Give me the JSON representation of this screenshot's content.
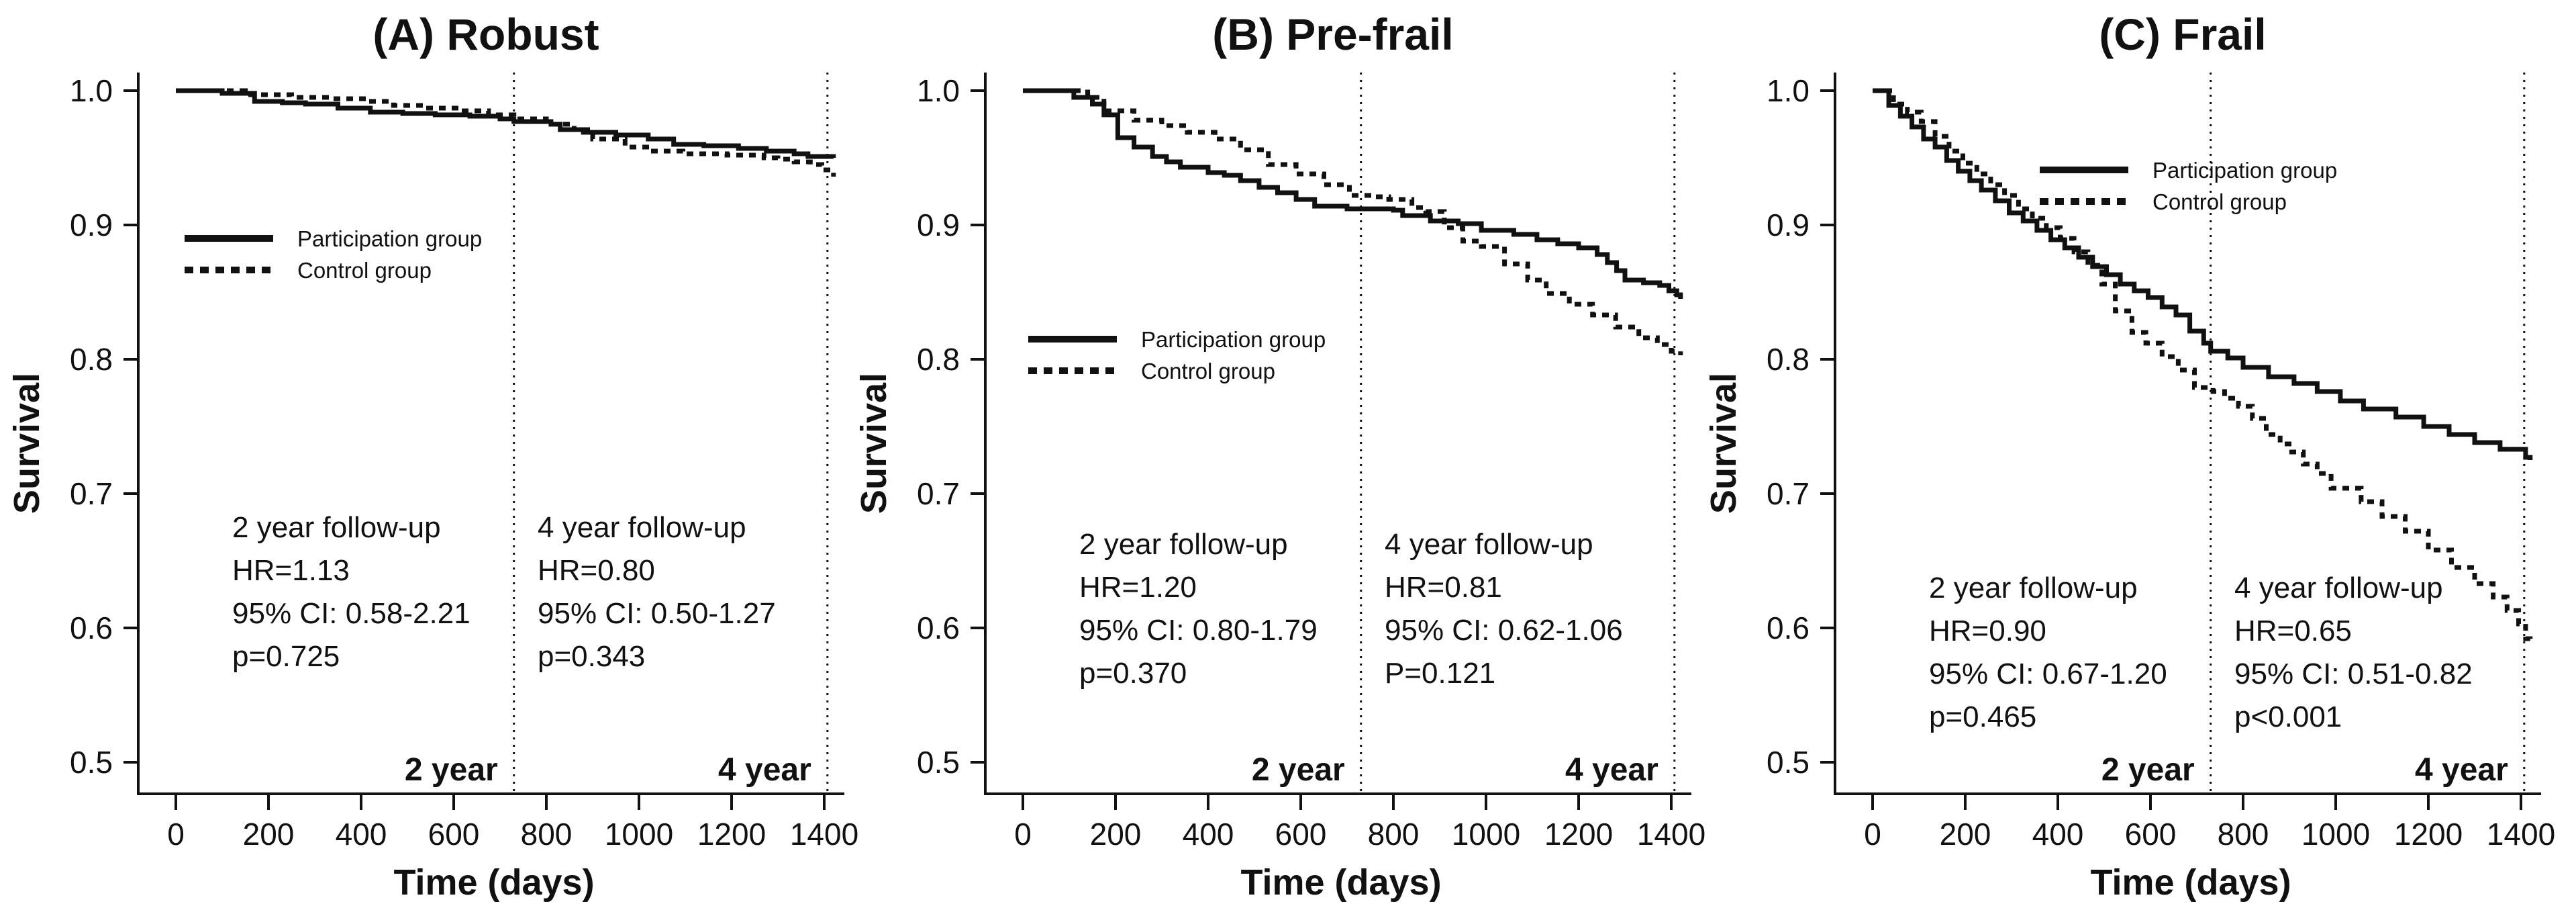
{
  "figure": {
    "ylabel": "Survival",
    "xlabel": "Time (days)",
    "legend": {
      "participation": "Participation group",
      "control": "Control group"
    },
    "colors": {
      "ink": "#111111",
      "background": "#ffffff"
    }
  },
  "chart_data": [
    {
      "type": "line",
      "title": "(A) Robust",
      "xlabel": "Time (days)",
      "ylabel": "Survival",
      "xlim": [
        0,
        1450
      ],
      "ylim": [
        0.47,
        1.02
      ],
      "xticks": [
        0,
        200,
        400,
        600,
        800,
        1000,
        1200,
        1400
      ],
      "yticks": [
        1.0,
        0.9,
        0.8,
        0.7,
        0.6,
        0.5
      ],
      "grid": false,
      "legend_position": {
        "x": 269,
        "y": 355
      },
      "annotation_baseline_y": 800,
      "vlines": [
        {
          "x": 730,
          "label": "2 year"
        },
        {
          "x": 1407,
          "label": "4 year"
        }
      ],
      "annotations": [
        {
          "x": 340,
          "lines": [
            "2 year follow-up",
            "HR=1.13",
            "95% CI: 0.58-2.21",
            "p=0.725"
          ]
        },
        {
          "x": 795,
          "lines": [
            "4 year follow-up",
            "HR=0.80",
            "95% CI: 0.50-1.27",
            "p=0.343"
          ]
        }
      ],
      "series": [
        {
          "name": "Participation group",
          "style": "solid",
          "points": [
            [
              0,
              1.0
            ],
            [
              70,
              1.0
            ],
            [
              100,
              0.998
            ],
            [
              170,
              0.992
            ],
            [
              230,
              0.991
            ],
            [
              280,
              0.99
            ],
            [
              350,
              0.987
            ],
            [
              420,
              0.984
            ],
            [
              490,
              0.983
            ],
            [
              560,
              0.982
            ],
            [
              635,
              0.981
            ],
            [
              700,
              0.979
            ],
            [
              730,
              0.977
            ],
            [
              810,
              0.975
            ],
            [
              830,
              0.971
            ],
            [
              880,
              0.969
            ],
            [
              950,
              0.967
            ],
            [
              1020,
              0.964
            ],
            [
              1075,
              0.96
            ],
            [
              1140,
              0.959
            ],
            [
              1215,
              0.957
            ],
            [
              1275,
              0.955
            ],
            [
              1335,
              0.953
            ],
            [
              1365,
              0.951
            ],
            [
              1420,
              0.95
            ]
          ]
        },
        {
          "name": "Control group",
          "style": "dotted",
          "points": [
            [
              0,
              1.0
            ],
            [
              150,
              0.997
            ],
            [
              250,
              0.995
            ],
            [
              335,
              0.994
            ],
            [
              405,
              0.992
            ],
            [
              470,
              0.989
            ],
            [
              540,
              0.987
            ],
            [
              605,
              0.985
            ],
            [
              675,
              0.982
            ],
            [
              730,
              0.979
            ],
            [
              800,
              0.975
            ],
            [
              860,
              0.971
            ],
            [
              900,
              0.964
            ],
            [
              970,
              0.958
            ],
            [
              1025,
              0.955
            ],
            [
              1095,
              0.953
            ],
            [
              1190,
              0.952
            ],
            [
              1270,
              0.95
            ],
            [
              1300,
              0.949
            ],
            [
              1335,
              0.947
            ],
            [
              1370,
              0.945
            ],
            [
              1395,
              0.941
            ],
            [
              1420,
              0.936
            ]
          ]
        }
      ]
    },
    {
      "type": "line",
      "title": "(B) Pre-frail",
      "xlabel": "Time (days)",
      "ylabel": "Survival",
      "xlim": [
        0,
        1450
      ],
      "ylim": [
        0.47,
        1.02
      ],
      "xticks": [
        0,
        200,
        400,
        600,
        800,
        1000,
        1200,
        1400
      ],
      "yticks": [
        1.0,
        0.9,
        0.8,
        0.7,
        0.6,
        0.5
      ],
      "grid": false,
      "legend_position": {
        "x": 264,
        "y": 505
      },
      "annotation_baseline_y": 825,
      "vlines": [
        {
          "x": 730,
          "label": "2 year"
        },
        {
          "x": 1407,
          "label": "4 year"
        }
      ],
      "annotations": [
        {
          "x": 340,
          "lines": [
            "2 year follow-up",
            "HR=1.20",
            "95% CI: 0.80-1.79",
            "p=0.370"
          ]
        },
        {
          "x": 795,
          "lines": [
            "4 year follow-up",
            "HR=0.81",
            "95% CI: 0.62-1.06",
            "P=0.121"
          ]
        }
      ],
      "series": [
        {
          "name": "Participation group",
          "style": "solid",
          "points": [
            [
              0,
              1.0
            ],
            [
              65,
              1.0
            ],
            [
              110,
              0.995
            ],
            [
              150,
              0.99
            ],
            [
              175,
              0.982
            ],
            [
              205,
              0.965
            ],
            [
              240,
              0.958
            ],
            [
              280,
              0.951
            ],
            [
              310,
              0.947
            ],
            [
              340,
              0.943
            ],
            [
              400,
              0.939
            ],
            [
              435,
              0.937
            ],
            [
              470,
              0.933
            ],
            [
              510,
              0.928
            ],
            [
              550,
              0.924
            ],
            [
              590,
              0.919
            ],
            [
              630,
              0.914
            ],
            [
              700,
              0.912
            ],
            [
              800,
              0.911
            ],
            [
              820,
              0.907
            ],
            [
              880,
              0.903
            ],
            [
              940,
              0.901
            ],
            [
              990,
              0.896
            ],
            [
              1060,
              0.893
            ],
            [
              1110,
              0.889
            ],
            [
              1155,
              0.886
            ],
            [
              1200,
              0.883
            ],
            [
              1240,
              0.878
            ],
            [
              1262,
              0.872
            ],
            [
              1282,
              0.866
            ],
            [
              1300,
              0.859
            ],
            [
              1340,
              0.857
            ],
            [
              1375,
              0.855
            ],
            [
              1395,
              0.851
            ],
            [
              1412,
              0.848
            ],
            [
              1420,
              0.845
            ]
          ]
        },
        {
          "name": "Control group",
          "style": "dotted",
          "points": [
            [
              0,
              1.0
            ],
            [
              125,
              0.999
            ],
            [
              140,
              0.995
            ],
            [
              175,
              0.985
            ],
            [
              240,
              0.978
            ],
            [
              300,
              0.974
            ],
            [
              355,
              0.969
            ],
            [
              415,
              0.964
            ],
            [
              470,
              0.956
            ],
            [
              530,
              0.945
            ],
            [
              590,
              0.938
            ],
            [
              650,
              0.93
            ],
            [
              705,
              0.922
            ],
            [
              760,
              0.921
            ],
            [
              790,
              0.919
            ],
            [
              840,
              0.913
            ],
            [
              870,
              0.91
            ],
            [
              910,
              0.898
            ],
            [
              950,
              0.888
            ],
            [
              990,
              0.884
            ],
            [
              1040,
              0.871
            ],
            [
              1090,
              0.859
            ],
            [
              1130,
              0.849
            ],
            [
              1180,
              0.841
            ],
            [
              1230,
              0.833
            ],
            [
              1280,
              0.824
            ],
            [
              1330,
              0.816
            ],
            [
              1370,
              0.811
            ],
            [
              1400,
              0.806
            ],
            [
              1420,
              0.803
            ]
          ]
        }
      ]
    },
    {
      "type": "line",
      "title": "(C) Frail",
      "xlabel": "Time (days)",
      "ylabel": "Survival",
      "xlim": [
        0,
        1450
      ],
      "ylim": [
        0.47,
        1.02
      ],
      "xticks": [
        0,
        200,
        400,
        600,
        800,
        1000,
        1200,
        1400
      ],
      "yticks": [
        1.0,
        0.9,
        0.8,
        0.7,
        0.6,
        0.5
      ],
      "grid": false,
      "legend_position": {
        "x": 505,
        "y": 253
      },
      "annotation_baseline_y": 890,
      "vlines": [
        {
          "x": 730,
          "label": "2 year"
        },
        {
          "x": 1407,
          "label": "4 year"
        }
      ],
      "annotations": [
        {
          "x": 340,
          "lines": [
            "2 year follow-up",
            "HR=0.90",
            "95% CI: 0.67-1.20",
            "p=0.465"
          ]
        },
        {
          "x": 795,
          "lines": [
            "4 year follow-up",
            "HR=0.65",
            "95% CI: 0.51-0.82",
            "p<0.001"
          ]
        }
      ],
      "series": [
        {
          "name": "Participation group",
          "style": "solid",
          "points": [
            [
              0,
              1.0
            ],
            [
              35,
              0.989
            ],
            [
              60,
              0.981
            ],
            [
              85,
              0.973
            ],
            [
              110,
              0.964
            ],
            [
              135,
              0.958
            ],
            [
              160,
              0.948
            ],
            [
              185,
              0.94
            ],
            [
              210,
              0.933
            ],
            [
              235,
              0.926
            ],
            [
              265,
              0.918
            ],
            [
              295,
              0.909
            ],
            [
              325,
              0.903
            ],
            [
              355,
              0.896
            ],
            [
              385,
              0.889
            ],
            [
              415,
              0.883
            ],
            [
              445,
              0.876
            ],
            [
              475,
              0.869
            ],
            [
              505,
              0.863
            ],
            [
              535,
              0.856
            ],
            [
              565,
              0.851
            ],
            [
              595,
              0.846
            ],
            [
              625,
              0.839
            ],
            [
              655,
              0.833
            ],
            [
              685,
              0.821
            ],
            [
              715,
              0.812
            ],
            [
              730,
              0.806
            ],
            [
              767,
              0.801
            ],
            [
              800,
              0.794
            ],
            [
              855,
              0.787
            ],
            [
              910,
              0.782
            ],
            [
              960,
              0.776
            ],
            [
              1010,
              0.769
            ],
            [
              1060,
              0.763
            ],
            [
              1130,
              0.757
            ],
            [
              1190,
              0.75
            ],
            [
              1245,
              0.744
            ],
            [
              1300,
              0.738
            ],
            [
              1355,
              0.733
            ],
            [
              1410,
              0.727
            ],
            [
              1420,
              0.725
            ]
          ]
        },
        {
          "name": "Control group",
          "style": "dotted",
          "points": [
            [
              0,
              1.0
            ],
            [
              45,
              0.99
            ],
            [
              75,
              0.984
            ],
            [
              105,
              0.977
            ],
            [
              135,
              0.966
            ],
            [
              165,
              0.955
            ],
            [
              195,
              0.946
            ],
            [
              225,
              0.938
            ],
            [
              255,
              0.93
            ],
            [
              285,
              0.922
            ],
            [
              315,
              0.912
            ],
            [
              345,
              0.905
            ],
            [
              375,
              0.898
            ],
            [
              405,
              0.89
            ],
            [
              435,
              0.88
            ],
            [
              465,
              0.87
            ],
            [
              495,
              0.856
            ],
            [
              524,
              0.836
            ],
            [
              560,
              0.82
            ],
            [
              590,
              0.812
            ],
            [
              625,
              0.802
            ],
            [
              660,
              0.792
            ],
            [
              695,
              0.779
            ],
            [
              735,
              0.776
            ],
            [
              760,
              0.771
            ],
            [
              790,
              0.765
            ],
            [
              820,
              0.756
            ],
            [
              850,
              0.744
            ],
            [
              880,
              0.737
            ],
            [
              905,
              0.731
            ],
            [
              930,
              0.722
            ],
            [
              960,
              0.715
            ],
            [
              990,
              0.704
            ],
            [
              1055,
              0.694
            ],
            [
              1100,
              0.683
            ],
            [
              1150,
              0.672
            ],
            [
              1200,
              0.658
            ],
            [
              1250,
              0.645
            ],
            [
              1300,
              0.633
            ],
            [
              1340,
              0.623
            ],
            [
              1370,
              0.613
            ],
            [
              1395,
              0.603
            ],
            [
              1410,
              0.592
            ],
            [
              1420,
              0.588
            ]
          ]
        }
      ]
    }
  ]
}
